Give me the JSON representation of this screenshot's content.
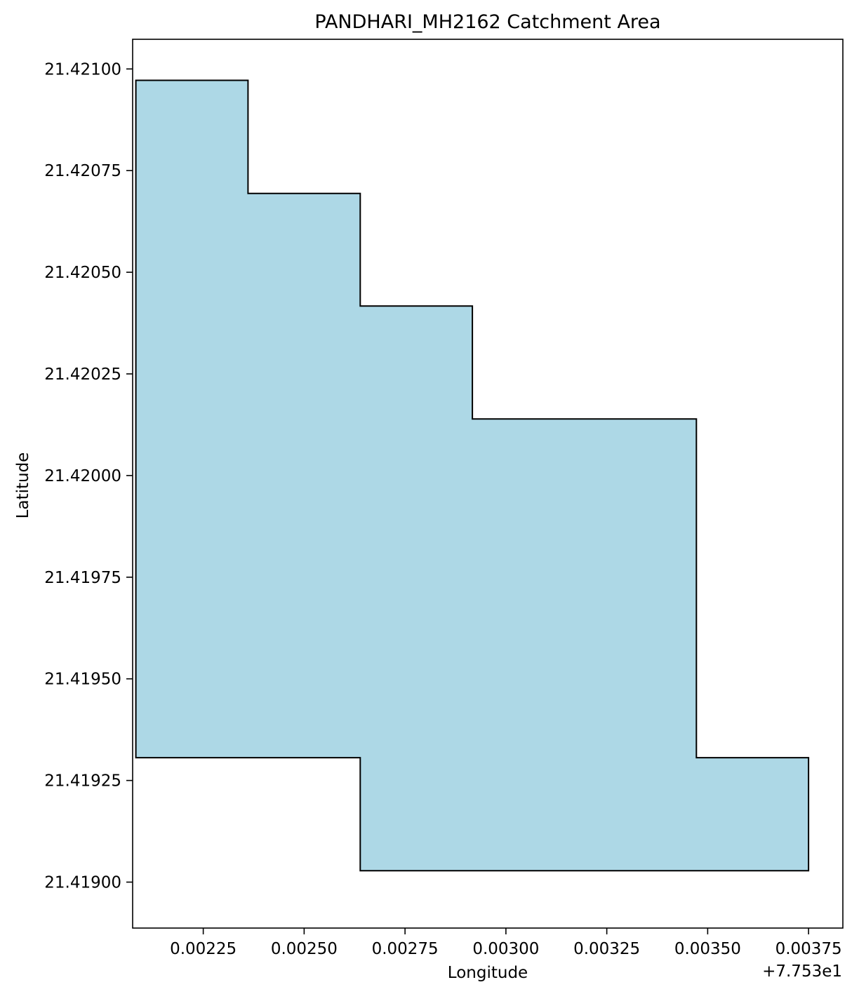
{
  "chart_data": {
    "type": "map-polygon",
    "title": "PANDHARI_MH2162 Catchment Area",
    "xlabel": "Longitude",
    "ylabel": "Latitude",
    "x_offset_label": "+7.753e1",
    "x_offset": 77.53,
    "xlim": [
      77.532075,
      77.533835
    ],
    "ylim": [
      21.418887,
      21.421073
    ],
    "xticks": [
      {
        "value": 77.53225,
        "label": "0.00225"
      },
      {
        "value": 77.5325,
        "label": "0.00250"
      },
      {
        "value": 77.53275,
        "label": "0.00275"
      },
      {
        "value": 77.533,
        "label": "0.00300"
      },
      {
        "value": 77.53325,
        "label": "0.00325"
      },
      {
        "value": 77.5335,
        "label": "0.00350"
      },
      {
        "value": 77.53375,
        "label": "0.00375"
      }
    ],
    "yticks": [
      {
        "value": 21.421,
        "label": "21.42100"
      },
      {
        "value": 21.42075,
        "label": "21.42075"
      },
      {
        "value": 21.4205,
        "label": "21.42050"
      },
      {
        "value": 21.42025,
        "label": "21.42025"
      },
      {
        "value": 21.42,
        "label": "21.42000"
      },
      {
        "value": 21.41975,
        "label": "21.41975"
      },
      {
        "value": 21.4195,
        "label": "21.41950"
      },
      {
        "value": 21.41925,
        "label": "21.41925"
      },
      {
        "value": 21.419,
        "label": "21.41900"
      }
    ],
    "fill_color": "#add8e6",
    "edge_color": "#000000",
    "polygon": [
      [
        77.532083,
        21.420972
      ],
      [
        77.532361,
        21.420972
      ],
      [
        77.532361,
        21.420694
      ],
      [
        77.532639,
        21.420694
      ],
      [
        77.532639,
        21.420417
      ],
      [
        77.532917,
        21.420417
      ],
      [
        77.532917,
        21.420139
      ],
      [
        77.533472,
        21.420139
      ],
      [
        77.533472,
        21.419306
      ],
      [
        77.53375,
        21.419306
      ],
      [
        77.53375,
        21.419028
      ],
      [
        77.532639,
        21.419028
      ],
      [
        77.532639,
        21.419306
      ],
      [
        77.532083,
        21.419306
      ]
    ]
  }
}
